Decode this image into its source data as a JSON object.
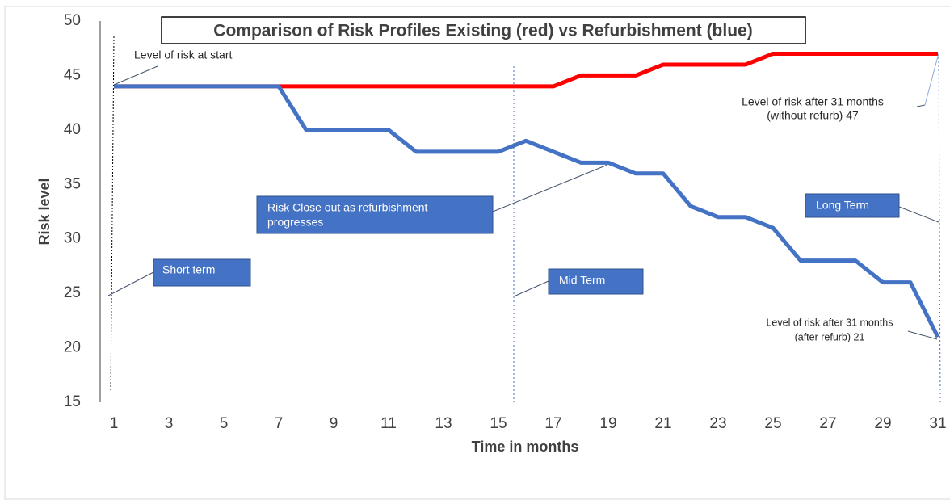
{
  "chart_data": {
    "type": "line",
    "title": "Comparison of Risk Profiles Existing (red) vs Refurbishment (blue)",
    "x_label": "Time in months",
    "y_label": "Risk level",
    "x": [
      1,
      2,
      3,
      4,
      5,
      6,
      7,
      8,
      9,
      10,
      11,
      12,
      13,
      14,
      15,
      16,
      17,
      18,
      19,
      20,
      21,
      22,
      23,
      24,
      25,
      26,
      27,
      28,
      29,
      30,
      31
    ],
    "series": [
      {
        "name": "Existing",
        "color": "#ff0000",
        "values": [
          44,
          44,
          44,
          44,
          44,
          44,
          44,
          44,
          44,
          44,
          44,
          44,
          44,
          44,
          44,
          44,
          44,
          45,
          45,
          45,
          46,
          46,
          46,
          46,
          47,
          47,
          47,
          47,
          47,
          47,
          47
        ]
      },
      {
        "name": "Refurbishment",
        "color": "#4472c4",
        "values": [
          44,
          44,
          44,
          44,
          44,
          44,
          44,
          40,
          40,
          40,
          40,
          38,
          38,
          38,
          38,
          39,
          38,
          37,
          37,
          36,
          36,
          33,
          32,
          32,
          31,
          28,
          28,
          28,
          26,
          26,
          21
        ]
      }
    ],
    "xlim": [
      0.5,
      31.5
    ],
    "xticks": [
      1,
      3,
      5,
      7,
      9,
      11,
      13,
      15,
      17,
      19,
      21,
      23,
      25,
      27,
      29,
      31
    ],
    "ylim": [
      15,
      50
    ],
    "yticks": [
      15,
      20,
      25,
      30,
      35,
      40,
      45,
      50
    ],
    "annotations": [
      {
        "lines": [
          "Level of risk at start"
        ]
      },
      {
        "lines": [
          "Risk Close out as refurbishment",
          "progresses"
        ]
      },
      {
        "lines": [
          "Short term"
        ]
      },
      {
        "lines": [
          "Mid Term"
        ]
      },
      {
        "lines": [
          "Long Term"
        ]
      },
      {
        "lines": [
          "Level of  risk after 31 months",
          "(without refurb) 47"
        ]
      },
      {
        "lines": [
          "Level of risk after 31 months",
          "(after refurb) 21"
        ]
      }
    ]
  }
}
